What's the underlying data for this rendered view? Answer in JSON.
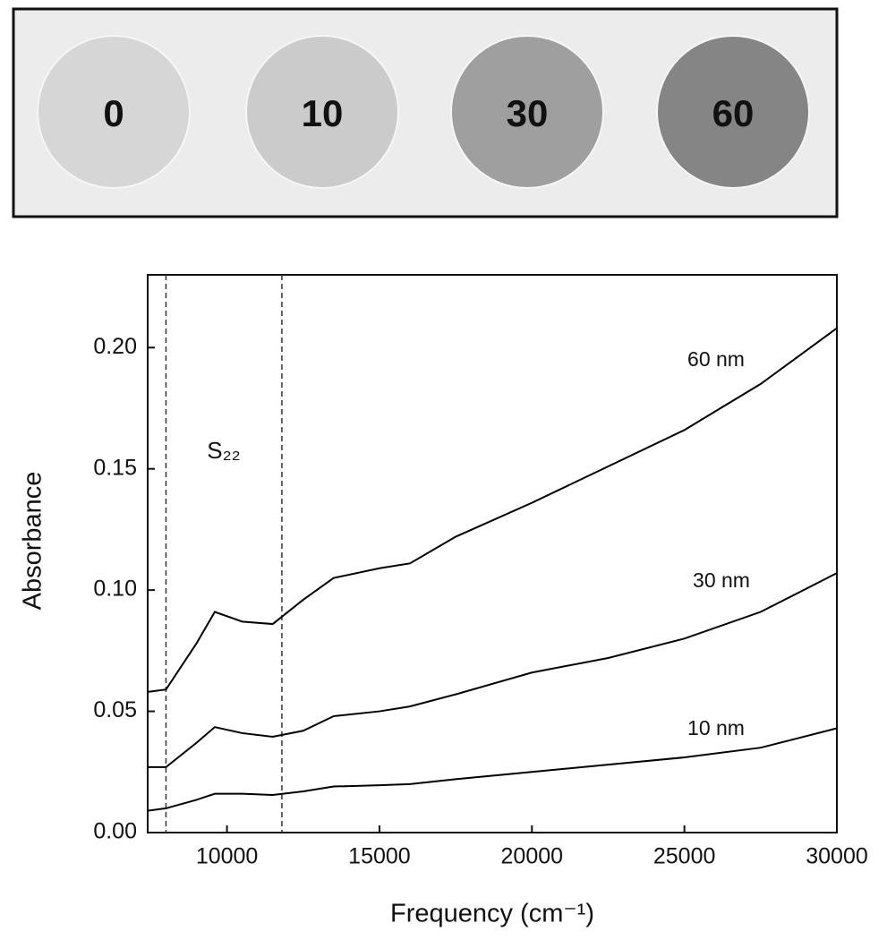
{
  "photo": {
    "samples": [
      "0",
      "10",
      "30",
      "60"
    ],
    "colors": [
      "#d6d6d6",
      "#cbcbcb",
      "#9f9f9f",
      "#858585"
    ]
  },
  "chart_data": {
    "type": "line",
    "x_label": "Frequency (cm⁻¹)",
    "y_label": "Absorbance",
    "annotation": "S₂₂",
    "vlines": [
      8000,
      11800
    ],
    "x": [
      7400,
      8000,
      9000,
      9600,
      10500,
      11500,
      12500,
      13500,
      15000,
      16000,
      17500,
      20000,
      22500,
      25000,
      27500,
      30000
    ],
    "series": [
      {
        "name": "60 nm",
        "color": "#000000",
        "values": [
          0.058,
          0.059,
          0.078,
          0.091,
          0.087,
          0.086,
          0.096,
          0.105,
          0.109,
          0.111,
          0.122,
          0.136,
          0.151,
          0.166,
          0.185,
          0.208
        ]
      },
      {
        "name": "30 nm",
        "color": "#000000",
        "values": [
          0.027,
          0.027,
          0.037,
          0.0435,
          0.041,
          0.0395,
          0.042,
          0.048,
          0.05,
          0.052,
          0.057,
          0.066,
          0.072,
          0.08,
          0.091,
          0.107
        ]
      },
      {
        "name": "10 nm",
        "color": "#000000",
        "values": [
          0.009,
          0.01,
          0.0135,
          0.016,
          0.016,
          0.0155,
          0.017,
          0.019,
          0.0195,
          0.02,
          0.022,
          0.025,
          0.028,
          0.031,
          0.035,
          0.043
        ]
      }
    ],
    "xlim": [
      7400,
      30000
    ],
    "ylim": [
      0,
      0.23
    ],
    "xticks": [
      10000,
      15000,
      20000,
      25000,
      30000
    ],
    "yticks": [
      {
        "value": 0,
        "label": "0.00"
      },
      0.05,
      {
        "value": 0.1,
        "label": "0.10"
      },
      0.15,
      {
        "value": 0.2,
        "label": "0.20"
      }
    ]
  }
}
